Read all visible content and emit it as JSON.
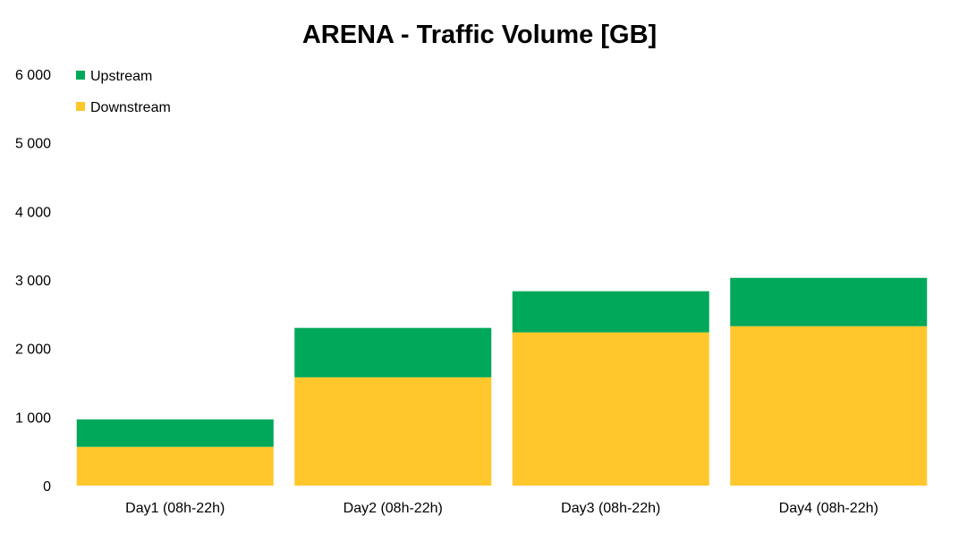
{
  "chart_data": {
    "type": "bar",
    "stacked": true,
    "title": "ARENA - Traffic Volume [GB]",
    "xlabel": "",
    "ylabel": "",
    "ylim": [
      0,
      6000
    ],
    "yticks": [
      0,
      1000,
      2000,
      3000,
      4000,
      5000,
      6000
    ],
    "ytick_labels": [
      "0",
      "1 000",
      "2 000",
      "3 000",
      "4 000",
      "5 000",
      "6 000"
    ],
    "grid": false,
    "legend_position": "top-left",
    "categories": [
      "Day1  (08h-22h)",
      "Day2  (08h-22h)",
      "Day3  (08h-22h)",
      "Day4  (08h-22h)"
    ],
    "series": [
      {
        "name": "Downstream",
        "color": "#FFC72C",
        "values": [
          565,
          1580,
          2235,
          2325
        ]
      },
      {
        "name": "Upstream",
        "color": "#00A859",
        "values": [
          400,
          720,
          600,
          705
        ]
      }
    ],
    "legend_order": [
      "Upstream",
      "Downstream"
    ]
  }
}
